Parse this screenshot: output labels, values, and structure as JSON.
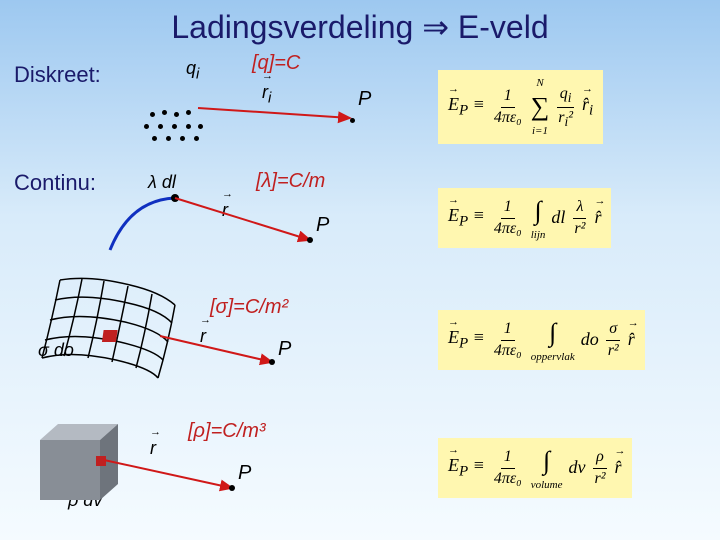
{
  "title": "Ladingsverdeling ⇒ E-veld",
  "sections": {
    "discrete": {
      "label": "Diskreet:",
      "q_label": "q",
      "q_sub": "i",
      "r_label": "r",
      "r_sub": "i",
      "unit": "[q]=C",
      "p": "P"
    },
    "line": {
      "label": "Continu:",
      "dl_label": "λ dl",
      "r_label": "r",
      "unit": "[λ]=C/m",
      "p": "P"
    },
    "surface": {
      "do_label": "σ do",
      "r_label": "r",
      "unit": "[σ]=C/m²",
      "p": "P"
    },
    "volume": {
      "dv_label": "ρ dv",
      "r_label": "r",
      "unit": "[ρ]=C/m³",
      "p": "P"
    }
  },
  "formulas": {
    "discrete": {
      "lhs": "E̅_P ≡",
      "c1": "1",
      "c2": "4πε₀",
      "sum_top": "N",
      "sum_bot": "i=1",
      "n1": "q_i",
      "n2": "r_i²",
      "tail": "r̂_i"
    },
    "line": {
      "lhs": "E̅_P ≡",
      "c1": "1",
      "c2": "4πε₀",
      "int_sub": "lijn",
      "body": "dl",
      "n1": "λ",
      "n2": "r²",
      "tail": "r̂"
    },
    "surface": {
      "lhs": "E̅_P ≡",
      "c1": "1",
      "c2": "4πε₀",
      "int_sub": "oppervlak",
      "body": "do",
      "n1": "σ",
      "n2": "r²",
      "tail": "r̂"
    },
    "volume": {
      "lhs": "E̅_P ≡",
      "c1": "1",
      "c2": "4πε₀",
      "int_sub": "volume",
      "body": "dv",
      "n1": "ρ",
      "n2": "r²",
      "tail": "r̂"
    }
  },
  "colors": {
    "title": "#1a1a6a",
    "unit": "#c02020",
    "formula_bg": "#fff7b0",
    "arrow_red": "#d01818",
    "line_blue": "#1030c0",
    "cube_gray": "#9aa0a8"
  },
  "geometry": {
    "dots": [
      [
        150,
        112
      ],
      [
        162,
        110
      ],
      [
        174,
        112
      ],
      [
        186,
        110
      ],
      [
        144,
        124
      ],
      [
        158,
        124
      ],
      [
        172,
        124
      ],
      [
        186,
        124
      ],
      [
        198,
        124
      ],
      [
        152,
        136
      ],
      [
        166,
        136
      ],
      [
        180,
        136
      ],
      [
        194,
        136
      ]
    ]
  }
}
